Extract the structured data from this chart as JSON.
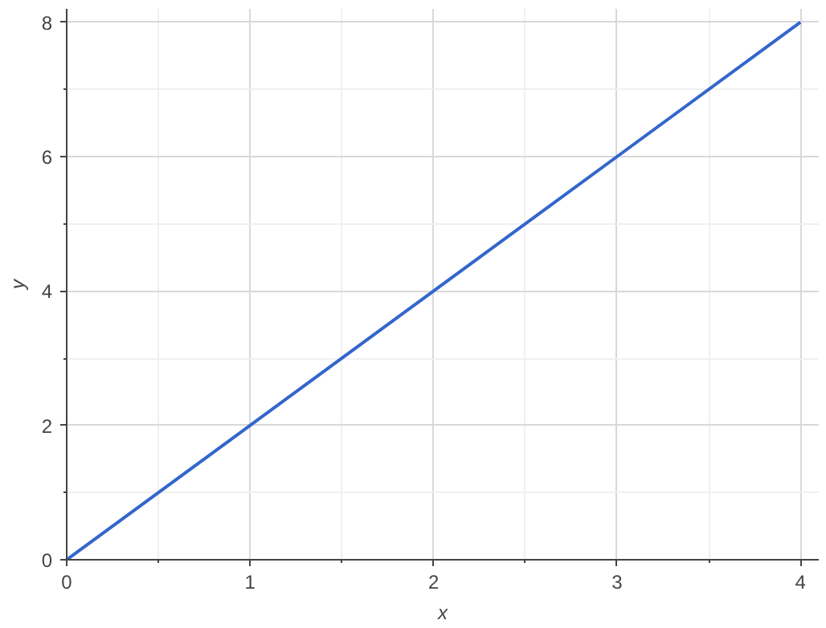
{
  "chart_data": {
    "type": "line",
    "xlabel": "x",
    "ylabel": "y",
    "x": [
      0,
      4
    ],
    "series": [
      {
        "color": "#3366cc",
        "values": [
          0,
          8
        ]
      }
    ],
    "xlim": [
      0,
      4.1
    ],
    "ylim": [
      0,
      8.2
    ],
    "xticks": [
      0,
      1,
      2,
      3,
      4
    ],
    "yticks": [
      0,
      2,
      4,
      6,
      8
    ],
    "grid": true,
    "marker": "none",
    "line_style": "solid"
  }
}
